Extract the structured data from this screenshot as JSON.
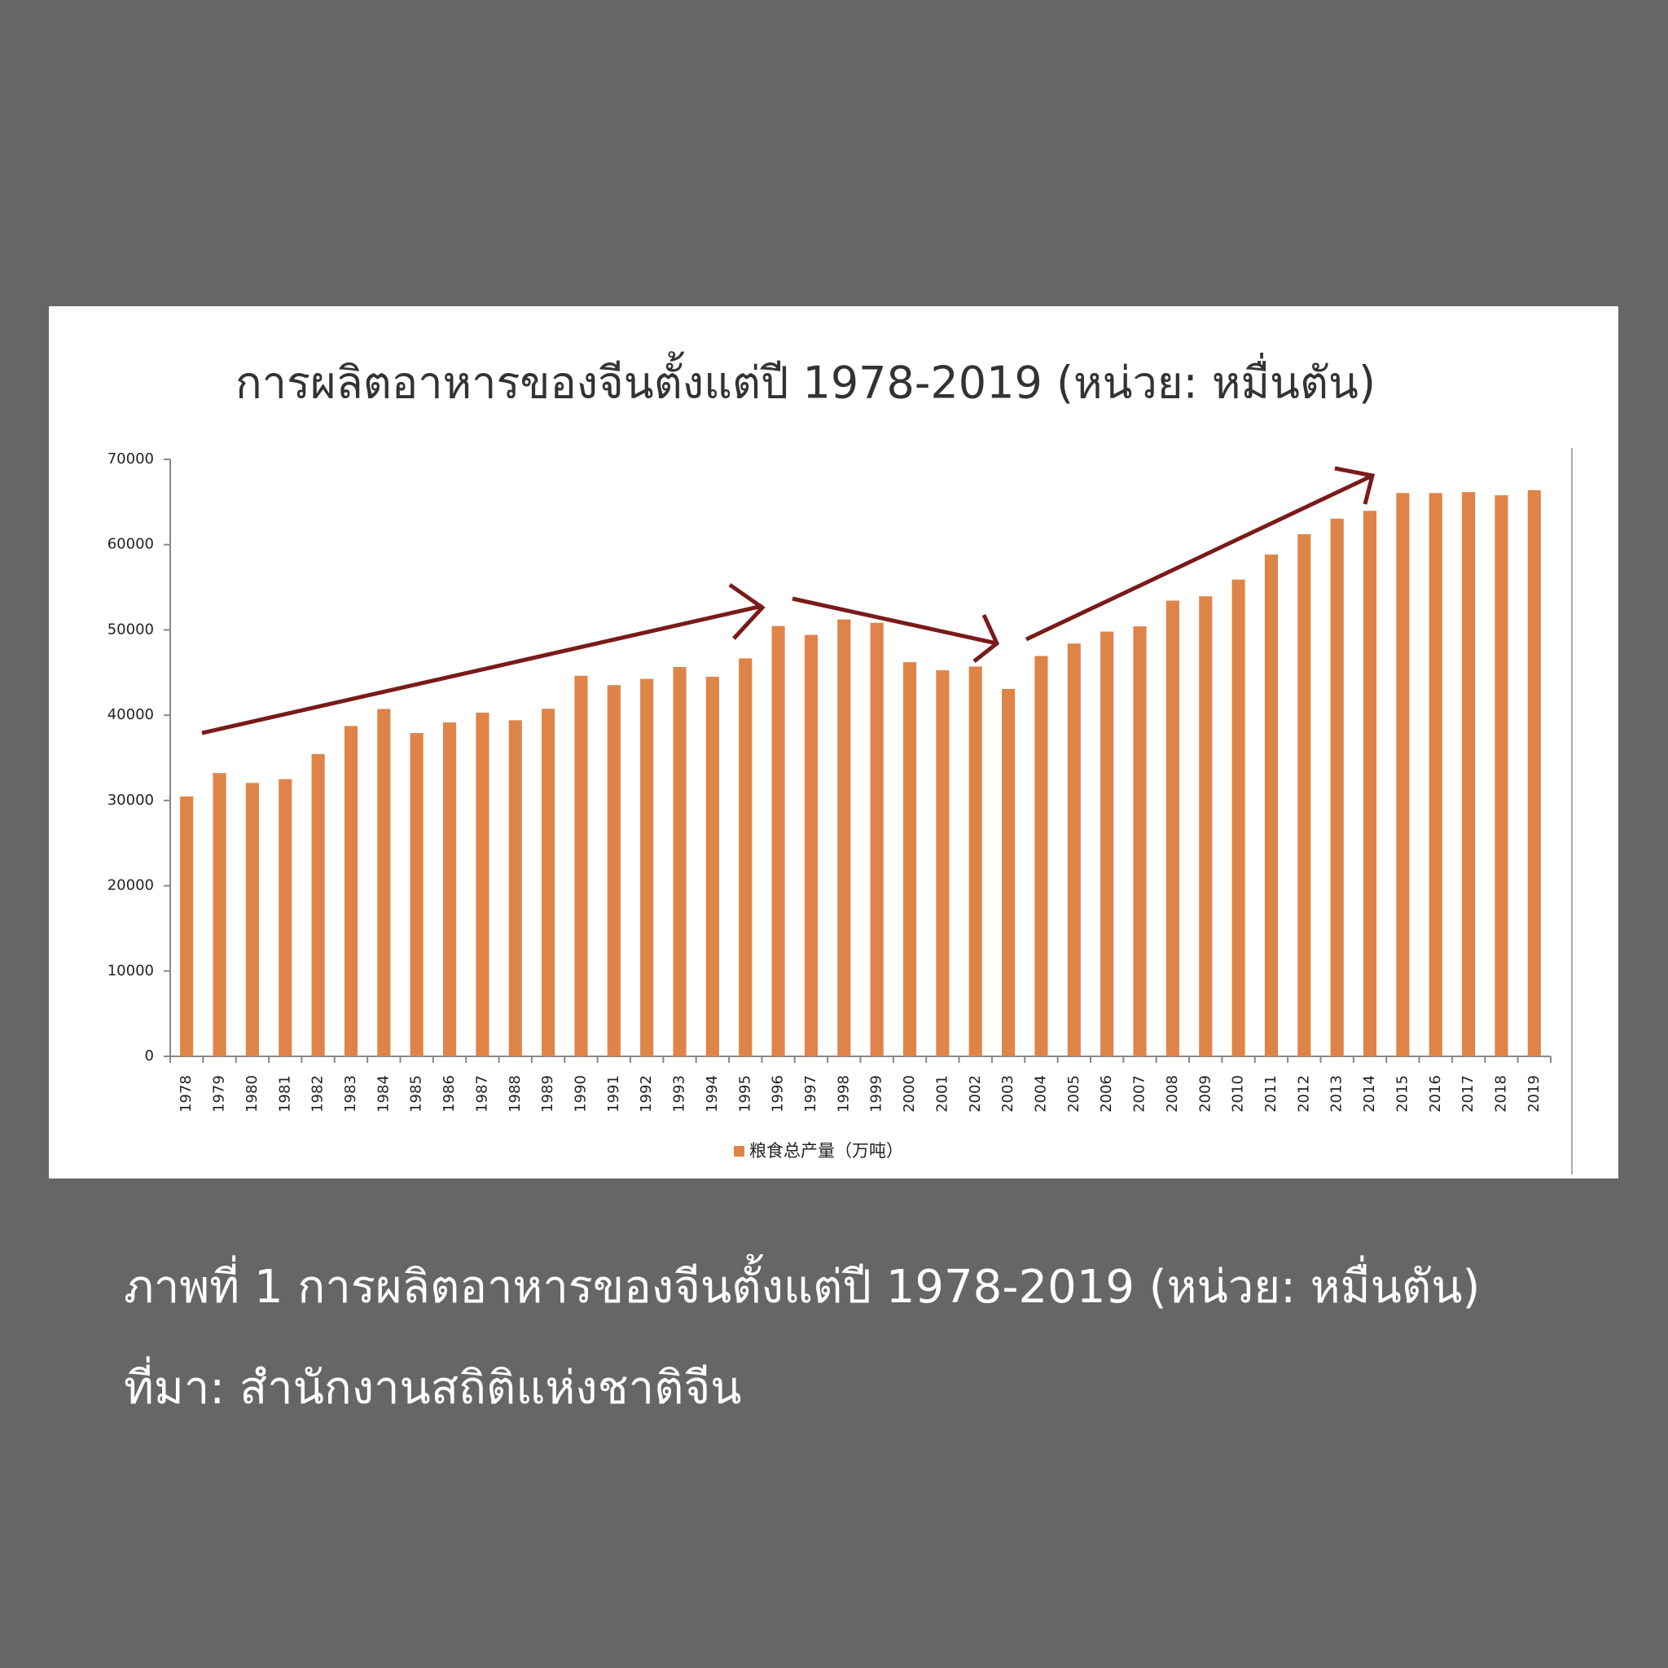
{
  "chart_data": {
    "type": "bar",
    "title": "การผลิตอาหารของจีนตั้งแต่ปี 1978-2019 (หน่วย: หมื่นตัน)",
    "categories": [
      "1978",
      "1979",
      "1980",
      "1981",
      "1982",
      "1983",
      "1984",
      "1985",
      "1986",
      "1987",
      "1988",
      "1989",
      "1990",
      "1991",
      "1992",
      "1993",
      "1994",
      "1995",
      "1996",
      "1997",
      "1998",
      "1999",
      "2000",
      "2001",
      "2002",
      "2003",
      "2004",
      "2005",
      "2006",
      "2007",
      "2008",
      "2009",
      "2010",
      "2011",
      "2012",
      "2013",
      "2014",
      "2015",
      "2016",
      "2017",
      "2018",
      "2019"
    ],
    "series": [
      {
        "name": "粮食总产量（万吨）",
        "color": "#df8448",
        "values": [
          30477,
          33212,
          32056,
          32502,
          35450,
          38728,
          40731,
          37911,
          39151,
          40298,
          39408,
          40755,
          44624,
          43529,
          44266,
          45649,
          44510,
          46662,
          50454,
          49417,
          51230,
          50839,
          46218,
          45264,
          45706,
          43070,
          46947,
          48402,
          49804,
          50414,
          53434,
          53941,
          55911,
          58849,
          61223,
          63048,
          63965,
          66060,
          66044,
          66161,
          65789,
          66384
        ]
      }
    ],
    "ylim": [
      0,
      70000
    ],
    "yticks": [
      0,
      10000,
      20000,
      30000,
      40000,
      50000,
      60000,
      70000
    ],
    "legend": "bottom"
  },
  "caption": {
    "figure": "ภาพที่ 1 การผลิตอาหารของจีนตั้งแต่ปี 1978-2019 (หน่วย: หมื่นตัน)",
    "source": "ที่มา: สำนักงานสถิติแห่งชาติจีน"
  }
}
